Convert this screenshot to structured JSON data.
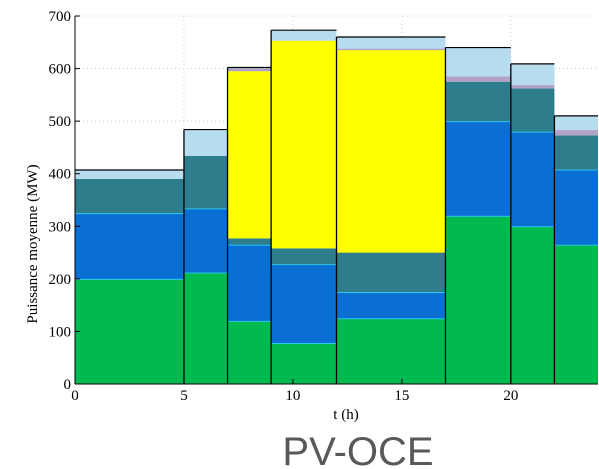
{
  "chart_data": {
    "type": "bar",
    "xlabel": "t (h)",
    "ylabel": "Puissance moyenne (MW)",
    "caption": "PV-OCE",
    "xlim": [
      0,
      24
    ],
    "ylim": [
      0,
      700
    ],
    "x_ticks": [
      0,
      5,
      10,
      15,
      20
    ],
    "y_ticks": [
      0,
      100,
      200,
      300,
      400,
      500,
      600,
      700
    ],
    "grid": true,
    "legend": "none",
    "intervals": [
      [
        0,
        5
      ],
      [
        5,
        7
      ],
      [
        7,
        9
      ],
      [
        9,
        12
      ],
      [
        12,
        17
      ],
      [
        17,
        20
      ],
      [
        20,
        22
      ],
      [
        22,
        24
      ]
    ],
    "series": [
      {
        "values": [
          200,
          212,
          120,
          78,
          125,
          320,
          300,
          265
        ]
      },
      {
        "values": [
          125,
          122,
          145,
          150,
          50,
          180,
          180,
          143
        ]
      },
      {
        "values": [
          0,
          0,
          12,
          30,
          75,
          0,
          0,
          0
        ]
      },
      {
        "values": [
          0,
          0,
          318,
          395,
          385,
          0,
          0,
          0
        ]
      },
      {
        "values": [
          65,
          100,
          0,
          0,
          0,
          75,
          82,
          65
        ]
      },
      {
        "values": [
          0,
          0,
          5,
          0,
          3,
          10,
          7,
          10
        ]
      },
      {
        "values": [
          17,
          50,
          2,
          20,
          22,
          55,
          40,
          27
        ]
      }
    ],
    "colors": {
      "series": [
        "#00b94f",
        "#0a6fd2",
        "#2e7d8c",
        "#ffff00",
        "#2e7d8c",
        "#b3a2c7",
        "#b7dcee"
      ],
      "separator": "#2ec7ee",
      "grid": "#cccccc",
      "outline": "#000000"
    }
  }
}
